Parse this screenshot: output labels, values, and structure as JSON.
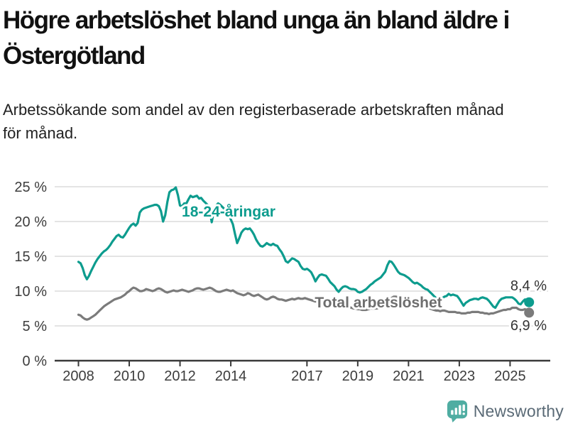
{
  "header": {
    "title_lines": [
      "Högre arbetslöshet bland unga än bland äldre i",
      "Östergötland"
    ],
    "subtitle_lines": [
      "Arbetssökande som andel av den registerbaserade arbetskraften månad",
      "för månad."
    ]
  },
  "chart_data": {
    "type": "line",
    "unit": "%",
    "title": "Högre arbetslöshet bland unga än bland äldre i Östergötland",
    "x_range": {
      "start_year": 2008,
      "start_month": 1,
      "end_year": 2025,
      "end_month": 10,
      "resolution": "monthly"
    },
    "x_tick_years": [
      2008,
      2010,
      2012,
      2014,
      2017,
      2019,
      2021,
      2023,
      2025
    ],
    "x_tick_labels": [
      "2008",
      "2010",
      "2012",
      "2014",
      "2017",
      "2019",
      "2021",
      "2023",
      "2025"
    ],
    "y_ticks": [
      0,
      5,
      10,
      15,
      20,
      25
    ],
    "y_tick_labels": [
      "0 %",
      "5 %",
      "10 %",
      "15 %",
      "20 %",
      "25 %"
    ],
    "ylim": [
      0,
      26
    ],
    "grid": "horizontal",
    "legend_position": "inline-labels",
    "colors": {
      "grid": "#dcdcdc",
      "axis": "#3a3a3a",
      "tick_text": "#3d3d3d",
      "end_label_text": "#333333"
    },
    "series": [
      {
        "id": "youth",
        "name": "18-24-åringar",
        "color": "#0d9c8e",
        "label_color": "#0d9c8e",
        "end_label": "8,4 %",
        "end_value": 8.4,
        "values": [
          14.2,
          14.0,
          13.3,
          12.3,
          11.7,
          12.2,
          12.9,
          13.5,
          14.1,
          14.6,
          15.0,
          15.4,
          15.7,
          15.9,
          16.2,
          16.6,
          17.1,
          17.5,
          17.9,
          18.1,
          17.8,
          17.7,
          18.1,
          18.6,
          19.1,
          19.5,
          19.7,
          19.4,
          19.8,
          21.3,
          21.7,
          21.9,
          22.0,
          22.1,
          22.2,
          22.3,
          22.4,
          22.4,
          22.2,
          21.5,
          20.0,
          20.9,
          22.8,
          24.2,
          24.5,
          24.6,
          24.9,
          23.8,
          22.3,
          22.2,
          22.6,
          22.6,
          23.2,
          23.7,
          23.5,
          23.6,
          23.7,
          23.3,
          23.4,
          23.0,
          22.7,
          22.4,
          21.6,
          19.9,
          21.5,
          22.3,
          22.6,
          22.4,
          22.1,
          21.8,
          21.5,
          21.0,
          20.3,
          19.6,
          18.2,
          16.9,
          17.6,
          18.4,
          18.8,
          19.0,
          18.9,
          19.0,
          18.6,
          18.1,
          17.4,
          16.9,
          16.5,
          16.4,
          16.6,
          16.9,
          16.7,
          16.6,
          16.8,
          16.6,
          16.5,
          16.0,
          15.6,
          15.0,
          14.3,
          14.1,
          14.4,
          14.7,
          14.6,
          14.4,
          14.2,
          13.6,
          13.2,
          13.1,
          13.2,
          13.0,
          12.7,
          12.1,
          11.4,
          11.9,
          12.3,
          12.4,
          12.3,
          12.2,
          11.8,
          11.3,
          11.0,
          10.7,
          10.2,
          9.9,
          10.3,
          10.6,
          10.7,
          10.6,
          10.4,
          10.3,
          10.3,
          10.2,
          9.9,
          9.8,
          9.9,
          10.1,
          10.3,
          10.6,
          10.9,
          11.1,
          11.4,
          11.6,
          11.8,
          12.0,
          12.4,
          12.8,
          13.7,
          14.3,
          14.2,
          13.8,
          13.3,
          12.8,
          12.5,
          12.4,
          12.3,
          12.1,
          11.9,
          11.6,
          11.3,
          11.1,
          11.2,
          11.0,
          10.8,
          10.5,
          10.3,
          10.2,
          9.9,
          9.6,
          9.3,
          9.0,
          8.8,
          8.8,
          9.0,
          9.2,
          9.3,
          9.6,
          9.4,
          9.5,
          9.4,
          9.3,
          8.9,
          8.4,
          7.9,
          8.3,
          8.5,
          8.7,
          8.8,
          8.9,
          8.9,
          8.8,
          9.0,
          9.1,
          9.0,
          8.9,
          8.6,
          8.2,
          7.8,
          7.6,
          8.1,
          8.6,
          8.9,
          9.0,
          9.1,
          9.1,
          9.1,
          9.1,
          8.9,
          8.6,
          8.2,
          8.1,
          8.5,
          8.8,
          8.8,
          8.4
        ]
      },
      {
        "id": "total",
        "name": "Total arbetslöshet",
        "color": "#7b7b7b",
        "label_color": "#6e6e6e",
        "end_label": "6,9 %",
        "end_value": 6.9,
        "values": [
          6.6,
          6.5,
          6.2,
          6.0,
          5.9,
          6.0,
          6.2,
          6.4,
          6.6,
          6.9,
          7.2,
          7.5,
          7.8,
          8.0,
          8.2,
          8.4,
          8.6,
          8.8,
          8.9,
          9.0,
          9.1,
          9.3,
          9.5,
          9.8,
          10.0,
          10.3,
          10.5,
          10.4,
          10.2,
          10.0,
          10.0,
          10.1,
          10.3,
          10.2,
          10.1,
          10.0,
          10.1,
          10.3,
          10.4,
          10.3,
          10.1,
          9.9,
          9.8,
          9.9,
          10.0,
          10.1,
          10.0,
          10.0,
          10.1,
          10.2,
          10.1,
          10.0,
          9.9,
          10.0,
          10.1,
          10.3,
          10.4,
          10.4,
          10.3,
          10.2,
          10.3,
          10.4,
          10.5,
          10.4,
          10.2,
          10.0,
          9.9,
          9.9,
          10.0,
          10.1,
          10.2,
          10.1,
          10.0,
          10.1,
          9.9,
          9.7,
          9.6,
          9.5,
          9.4,
          9.5,
          9.7,
          9.6,
          9.4,
          9.3,
          9.4,
          9.5,
          9.3,
          9.1,
          8.9,
          8.8,
          8.9,
          9.1,
          9.2,
          9.1,
          8.9,
          8.8,
          8.8,
          8.7,
          8.6,
          8.7,
          8.8,
          8.9,
          8.8,
          8.9,
          9.0,
          8.9,
          8.9,
          9.0,
          8.9,
          8.8,
          8.7,
          8.6,
          8.5,
          8.5,
          8.6,
          8.6,
          8.5,
          8.4,
          8.3,
          8.2,
          8.1,
          8.0,
          7.9,
          7.8,
          7.7,
          7.7,
          7.8,
          7.8,
          7.7,
          7.6,
          7.5,
          7.5,
          7.4,
          7.4,
          7.3,
          7.3,
          7.3,
          7.4,
          7.5,
          7.5,
          7.5,
          7.5,
          7.6,
          7.7,
          7.8,
          7.9,
          8.3,
          8.8,
          9.0,
          9.2,
          9.2,
          9.1,
          9.0,
          8.9,
          8.9,
          8.8,
          8.8,
          8.7,
          8.6,
          8.4,
          8.3,
          8.2,
          8.0,
          7.9,
          7.8,
          7.7,
          7.5,
          7.4,
          7.3,
          7.2,
          7.2,
          7.1,
          7.2,
          7.2,
          7.1,
          7.0,
          7.0,
          7.0,
          7.0,
          6.9,
          6.9,
          6.8,
          6.8,
          6.8,
          6.9,
          6.9,
          7.0,
          7.0,
          7.0,
          7.0,
          6.9,
          6.9,
          6.8,
          6.8,
          6.7,
          6.8,
          6.8,
          6.9,
          7.0,
          7.1,
          7.2,
          7.3,
          7.3,
          7.4,
          7.4,
          7.6,
          7.6,
          7.6,
          7.4,
          7.3,
          7.3,
          7.4,
          7.3,
          6.9
        ]
      }
    ]
  },
  "footer": {
    "brand": "Newsworthy",
    "icon": "newsworthy-bubble-chart-icon",
    "icon_color": "#4fada2",
    "text_color": "#5a6a76"
  }
}
